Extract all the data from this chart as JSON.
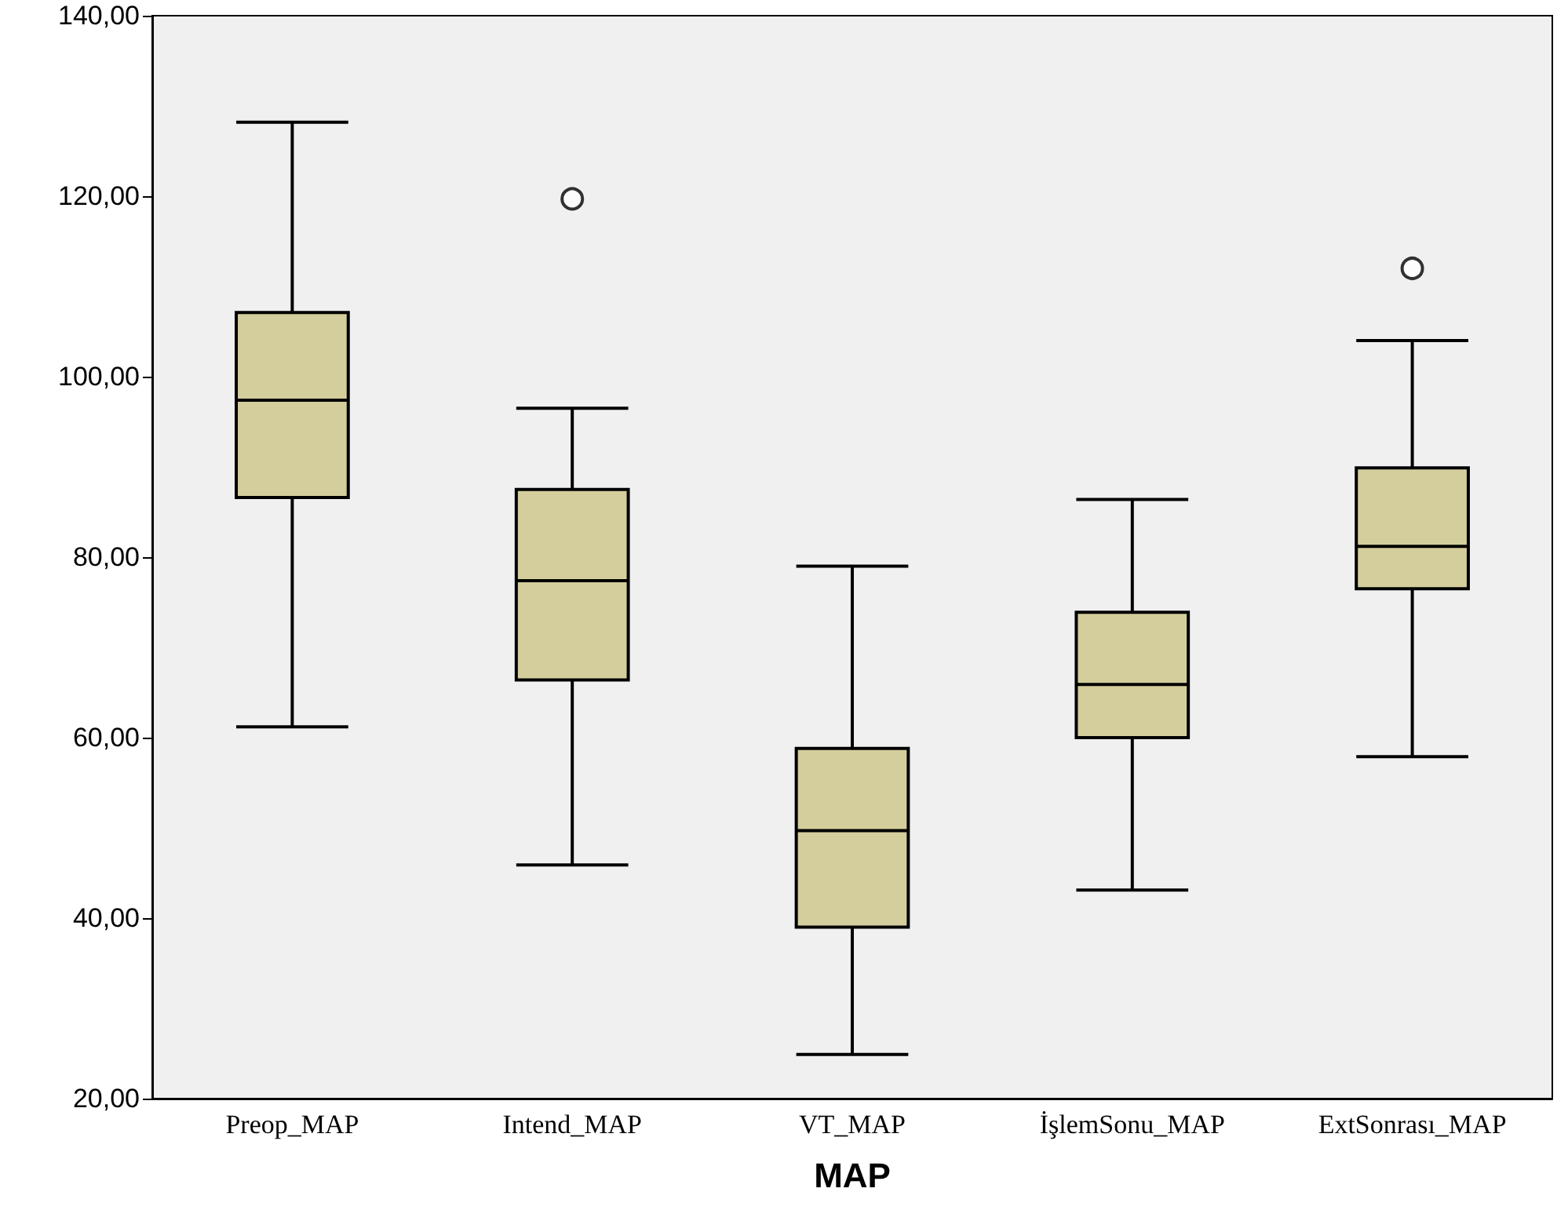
{
  "chart_data": {
    "type": "box",
    "xlabel": "MAP",
    "categories": [
      "Preop_MAP",
      "Intend_MAP",
      "VT_MAP",
      "İşlemSonu_MAP",
      "ExtSonrası_MAP"
    ],
    "color": "#d3ce9c",
    "boxes": [
      {
        "low": 61.2,
        "q1": 86.6,
        "median": 97.4,
        "q3": 107.1,
        "high": 128.2
      },
      {
        "low": 45.9,
        "q1": 66.4,
        "median": 77.4,
        "q3": 87.5,
        "high": 96.5,
        "outliers": [
          119.7
        ]
      },
      {
        "low": 24.9,
        "q1": 39,
        "median": 49.7,
        "q3": 58.8,
        "high": 79
      },
      {
        "low": 43.1,
        "q1": 60,
        "median": 65.9,
        "q3": 73.9,
        "high": 86.4
      },
      {
        "low": 57.9,
        "q1": 76.5,
        "median": 81.2,
        "q3": 89.9,
        "high": 104,
        "outliers": [
          112
        ]
      }
    ],
    "ylim": [
      20,
      140
    ],
    "yticks": [
      {
        "value": 20,
        "label": "20,00"
      },
      {
        "value": 40,
        "label": "40,00"
      },
      {
        "value": 60,
        "label": "60,00"
      },
      {
        "value": 80,
        "label": "80,00"
      },
      {
        "value": 100,
        "label": "100,00"
      },
      {
        "value": 120,
        "label": "120,00"
      },
      {
        "value": 140,
        "label": "140,00"
      }
    ],
    "grid": false,
    "marker": "circle"
  }
}
